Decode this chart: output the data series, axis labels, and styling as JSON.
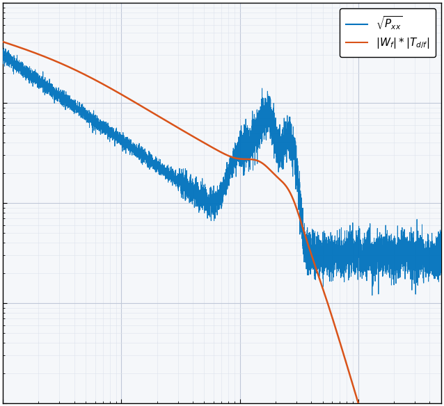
{
  "title": "",
  "xlabel": "",
  "ylabel": "",
  "xlim": [
    0.1,
    500
  ],
  "ylim": [
    1e-09,
    1e-05
  ],
  "line1_color": "#0072BD",
  "line2_color": "#D95319",
  "legend_label1": "$\\sqrt{P_{xx}}$",
  "legend_label2": "$|W_f| * |T_{d/f}|$",
  "background_color": "#ffffff",
  "grid_major_color": "#c0c8d8",
  "grid_minor_color": "#dde3ec",
  "figsize": [
    6.38,
    5.84
  ],
  "dpi": 100
}
